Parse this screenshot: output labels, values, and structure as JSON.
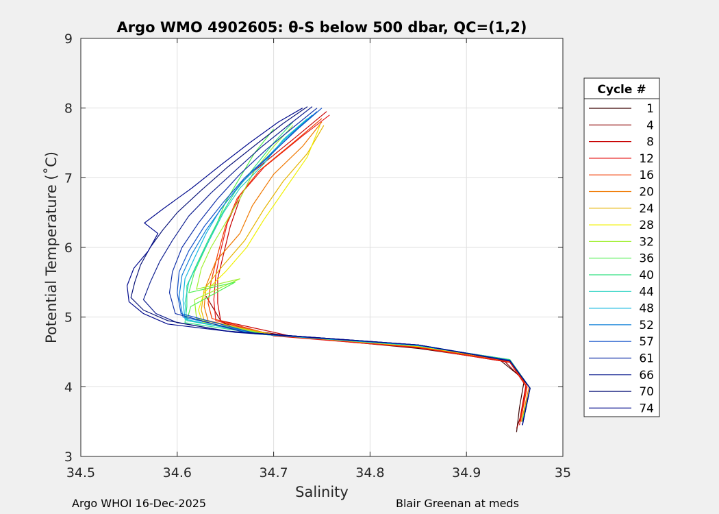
{
  "chart_data": {
    "type": "line",
    "title": "Argo WMO 4902605: θ-S below 500 dbar,  QC=(1,2)",
    "xlabel": "Salinity",
    "ylabel": "Potential Temperature (˚C)",
    "xlim": [
      34.5,
      35
    ],
    "ylim": [
      3,
      9
    ],
    "xticks": [
      "34.5",
      "34.6",
      "34.7",
      "34.8",
      "34.9",
      "35"
    ],
    "yticks": [
      "3",
      "4",
      "5",
      "6",
      "7",
      "8",
      "9"
    ],
    "grid": true,
    "legend": {
      "title": "Cycle #",
      "placement": "outside-right",
      "entries": [
        "1",
        "4",
        "8",
        "12",
        "16",
        "20",
        "24",
        "28",
        "32",
        "36",
        "40",
        "44",
        "48",
        "52",
        "57",
        "61",
        "66",
        "70",
        "74"
      ],
      "colors": [
        "#3b0000",
        "#8b0000",
        "#c80000",
        "#e61414",
        "#f23a00",
        "#f07800",
        "#e6b400",
        "#f0f000",
        "#a0f030",
        "#50f050",
        "#30e080",
        "#20d0c0",
        "#10b8e0",
        "#1080d8",
        "#1050c8",
        "#1030a8",
        "#102090",
        "#0a1478",
        "#000a8c"
      ]
    },
    "series": [
      {
        "name": "1",
        "points": [
          [
            34.645,
            4.95
          ],
          [
            34.655,
            4.85
          ],
          [
            34.72,
            4.72
          ],
          [
            34.85,
            4.55
          ],
          [
            34.935,
            4.38
          ],
          [
            34.96,
            4.1
          ],
          [
            34.955,
            3.7
          ],
          [
            34.952,
            3.35
          ]
        ]
      },
      {
        "name": "4",
        "points": [
          [
            34.63,
            5.3
          ],
          [
            34.645,
            4.95
          ],
          [
            34.66,
            4.84
          ],
          [
            34.73,
            4.7
          ],
          [
            34.85,
            4.56
          ],
          [
            34.94,
            4.36
          ],
          [
            34.962,
            4.05
          ],
          [
            34.958,
            3.65
          ],
          [
            34.952,
            3.4
          ]
        ]
      },
      {
        "name": "8",
        "points": [
          [
            34.755,
            7.95
          ],
          [
            34.72,
            7.55
          ],
          [
            34.68,
            7.1
          ],
          [
            34.665,
            6.7
          ],
          [
            34.655,
            6.3
          ],
          [
            34.648,
            5.9
          ],
          [
            34.642,
            5.55
          ],
          [
            34.642,
            5.2
          ],
          [
            34.645,
            4.95
          ],
          [
            34.72,
            4.72
          ],
          [
            34.86,
            4.55
          ],
          [
            34.945,
            4.35
          ],
          [
            34.962,
            4.05
          ],
          [
            34.955,
            3.5
          ]
        ]
      },
      {
        "name": "12",
        "points": [
          [
            34.758,
            7.9
          ],
          [
            34.73,
            7.6
          ],
          [
            34.69,
            7.15
          ],
          [
            34.665,
            6.75
          ],
          [
            34.652,
            6.35
          ],
          [
            34.645,
            5.95
          ],
          [
            34.64,
            5.6
          ],
          [
            34.638,
            5.25
          ],
          [
            34.64,
            4.95
          ],
          [
            34.7,
            4.73
          ],
          [
            34.85,
            4.56
          ],
          [
            34.945,
            4.35
          ],
          [
            34.962,
            4.0
          ],
          [
            34.955,
            3.45
          ]
        ]
      },
      {
        "name": "16",
        "points": [
          [
            34.75,
            7.85
          ],
          [
            34.72,
            7.5
          ],
          [
            34.685,
            7.1
          ],
          [
            34.662,
            6.7
          ],
          [
            34.65,
            6.3
          ],
          [
            34.642,
            5.9
          ],
          [
            34.635,
            5.5
          ],
          [
            34.632,
            5.2
          ],
          [
            34.636,
            4.98
          ],
          [
            34.7,
            4.74
          ],
          [
            34.85,
            4.57
          ],
          [
            34.945,
            4.36
          ],
          [
            34.963,
            4.0
          ],
          [
            34.956,
            3.5
          ]
        ]
      },
      {
        "name": "20",
        "points": [
          [
            34.75,
            7.8
          ],
          [
            34.73,
            7.45
          ],
          [
            34.7,
            7.05
          ],
          [
            34.678,
            6.6
          ],
          [
            34.665,
            6.2
          ],
          [
            34.64,
            5.8
          ],
          [
            34.63,
            5.45
          ],
          [
            34.628,
            5.15
          ],
          [
            34.632,
            4.95
          ],
          [
            34.7,
            4.74
          ],
          [
            34.85,
            4.58
          ],
          [
            34.945,
            4.37
          ],
          [
            34.965,
            4.0
          ],
          [
            34.957,
            3.5
          ]
        ]
      },
      {
        "name": "24",
        "points": [
          [
            34.752,
            7.75
          ],
          [
            34.735,
            7.35
          ],
          [
            34.71,
            6.95
          ],
          [
            34.69,
            6.55
          ],
          [
            34.67,
            6.1
          ],
          [
            34.645,
            5.7
          ],
          [
            34.628,
            5.4
          ],
          [
            34.625,
            5.1
          ],
          [
            34.628,
            4.95
          ],
          [
            34.7,
            4.75
          ],
          [
            34.85,
            4.58
          ],
          [
            34.945,
            4.38
          ],
          [
            34.966,
            3.98
          ],
          [
            34.958,
            3.55
          ]
        ]
      },
      {
        "name": "28",
        "points": [
          [
            34.748,
            7.75
          ],
          [
            34.735,
            7.3
          ],
          [
            34.715,
            6.9
          ],
          [
            34.69,
            6.4
          ],
          [
            34.672,
            6.0
          ],
          [
            34.65,
            5.65
          ],
          [
            34.628,
            5.35
          ],
          [
            34.622,
            5.1
          ],
          [
            34.626,
            4.93
          ],
          [
            34.7,
            4.74
          ],
          [
            34.85,
            4.58
          ],
          [
            34.945,
            4.38
          ],
          [
            34.966,
            3.98
          ],
          [
            34.958,
            3.5
          ]
        ]
      },
      {
        "name": "32",
        "points": [
          [
            34.72,
            7.75
          ],
          [
            34.7,
            7.45
          ],
          [
            34.68,
            7.1
          ],
          [
            34.665,
            6.7
          ],
          [
            34.65,
            6.35
          ],
          [
            34.635,
            6.0
          ],
          [
            34.625,
            5.7
          ],
          [
            34.62,
            5.4
          ],
          [
            34.665,
            5.55
          ],
          [
            34.618,
            5.25
          ],
          [
            34.62,
            4.98
          ],
          [
            34.69,
            4.76
          ],
          [
            34.85,
            4.59
          ],
          [
            34.945,
            4.39
          ],
          [
            34.966,
            3.98
          ],
          [
            34.958,
            3.5
          ]
        ]
      },
      {
        "name": "36",
        "points": [
          [
            34.7,
            7.7
          ],
          [
            34.68,
            7.35
          ],
          [
            34.665,
            7.0
          ],
          [
            34.65,
            6.65
          ],
          [
            34.64,
            6.3
          ],
          [
            34.628,
            5.95
          ],
          [
            34.618,
            5.65
          ],
          [
            34.612,
            5.35
          ],
          [
            34.66,
            5.5
          ],
          [
            34.614,
            5.15
          ],
          [
            34.61,
            4.95
          ],
          [
            34.69,
            4.76
          ],
          [
            34.85,
            4.59
          ],
          [
            34.945,
            4.39
          ],
          [
            34.966,
            3.98
          ],
          [
            34.958,
            3.5
          ]
        ]
      },
      {
        "name": "40",
        "points": [
          [
            34.72,
            7.8
          ],
          [
            34.7,
            7.5
          ],
          [
            34.68,
            7.15
          ],
          [
            34.66,
            6.8
          ],
          [
            34.645,
            6.45
          ],
          [
            34.632,
            6.1
          ],
          [
            34.62,
            5.75
          ],
          [
            34.61,
            5.45
          ],
          [
            34.61,
            5.15
          ],
          [
            34.608,
            4.92
          ],
          [
            34.69,
            4.75
          ],
          [
            34.85,
            4.59
          ],
          [
            34.945,
            4.39
          ],
          [
            34.966,
            3.98
          ],
          [
            34.958,
            3.5
          ]
        ]
      },
      {
        "name": "44",
        "points": [
          [
            34.735,
            7.85
          ],
          [
            34.71,
            7.55
          ],
          [
            34.69,
            7.2
          ],
          [
            34.665,
            6.85
          ],
          [
            34.648,
            6.5
          ],
          [
            34.635,
            6.15
          ],
          [
            34.622,
            5.8
          ],
          [
            34.612,
            5.5
          ],
          [
            34.608,
            5.2
          ],
          [
            34.61,
            4.95
          ],
          [
            34.69,
            4.75
          ],
          [
            34.85,
            4.59
          ],
          [
            34.945,
            4.38
          ],
          [
            34.966,
            3.98
          ],
          [
            34.958,
            3.45
          ]
        ]
      },
      {
        "name": "48",
        "points": [
          [
            34.74,
            7.9
          ],
          [
            34.715,
            7.6
          ],
          [
            34.69,
            7.25
          ],
          [
            34.665,
            6.9
          ],
          [
            34.645,
            6.55
          ],
          [
            34.63,
            6.2
          ],
          [
            34.618,
            5.85
          ],
          [
            34.608,
            5.55
          ],
          [
            34.606,
            5.25
          ],
          [
            34.608,
            4.97
          ],
          [
            34.68,
            4.76
          ],
          [
            34.85,
            4.59
          ],
          [
            34.945,
            4.38
          ],
          [
            34.966,
            3.98
          ],
          [
            34.958,
            3.45
          ]
        ]
      },
      {
        "name": "52",
        "points": [
          [
            34.745,
            7.95
          ],
          [
            34.72,
            7.65
          ],
          [
            34.695,
            7.3
          ],
          [
            34.668,
            6.95
          ],
          [
            34.648,
            6.6
          ],
          [
            34.63,
            6.25
          ],
          [
            34.615,
            5.9
          ],
          [
            34.605,
            5.6
          ],
          [
            34.602,
            5.3
          ],
          [
            34.606,
            5.0
          ],
          [
            34.68,
            4.77
          ],
          [
            34.85,
            4.6
          ],
          [
            34.945,
            4.38
          ],
          [
            34.966,
            3.98
          ],
          [
            34.958,
            3.45
          ]
        ]
      },
      {
        "name": "57",
        "points": [
          [
            34.75,
            8.0
          ],
          [
            34.725,
            7.7
          ],
          [
            34.698,
            7.35
          ],
          [
            34.67,
            7.0
          ],
          [
            34.648,
            6.65
          ],
          [
            34.628,
            6.3
          ],
          [
            34.612,
            5.95
          ],
          [
            34.602,
            5.65
          ],
          [
            34.6,
            5.35
          ],
          [
            34.604,
            5.05
          ],
          [
            34.68,
            4.77
          ],
          [
            34.85,
            4.6
          ],
          [
            34.945,
            4.38
          ],
          [
            34.966,
            3.98
          ],
          [
            34.958,
            3.45
          ]
        ]
      },
      {
        "name": "61",
        "points": [
          [
            34.745,
            8.0
          ],
          [
            34.72,
            7.72
          ],
          [
            34.692,
            7.4
          ],
          [
            34.665,
            7.05
          ],
          [
            34.642,
            6.7
          ],
          [
            34.622,
            6.35
          ],
          [
            34.605,
            6.0
          ],
          [
            34.595,
            5.65
          ],
          [
            34.592,
            5.35
          ],
          [
            34.598,
            5.05
          ],
          [
            34.67,
            4.78
          ],
          [
            34.85,
            4.6
          ],
          [
            34.945,
            4.37
          ],
          [
            34.966,
            3.98
          ],
          [
            34.958,
            3.45
          ]
        ]
      },
      {
        "name": "66",
        "points": [
          [
            34.74,
            8.02
          ],
          [
            34.715,
            7.75
          ],
          [
            34.688,
            7.45
          ],
          [
            34.66,
            7.1
          ],
          [
            34.635,
            6.78
          ],
          [
            34.612,
            6.45
          ],
          [
            34.595,
            6.1
          ],
          [
            34.582,
            5.8
          ],
          [
            34.572,
            5.5
          ],
          [
            34.565,
            5.25
          ],
          [
            34.578,
            5.05
          ],
          [
            34.6,
            4.92
          ],
          [
            34.66,
            4.78
          ],
          [
            34.85,
            4.6
          ],
          [
            34.945,
            4.37
          ],
          [
            34.966,
            3.98
          ],
          [
            34.958,
            3.45
          ]
        ]
      },
      {
        "name": "70",
        "points": [
          [
            34.735,
            8.02
          ],
          [
            34.71,
            7.78
          ],
          [
            34.682,
            7.48
          ],
          [
            34.652,
            7.15
          ],
          [
            34.625,
            6.82
          ],
          [
            34.6,
            6.5
          ],
          [
            34.585,
            6.25
          ],
          [
            34.572,
            6.0
          ],
          [
            34.562,
            5.75
          ],
          [
            34.556,
            5.5
          ],
          [
            34.552,
            5.28
          ],
          [
            34.565,
            5.1
          ],
          [
            34.59,
            4.95
          ],
          [
            34.65,
            4.8
          ],
          [
            34.85,
            4.6
          ],
          [
            34.945,
            4.37
          ],
          [
            34.966,
            3.98
          ],
          [
            34.958,
            3.45
          ]
        ]
      },
      {
        "name": "74",
        "points": [
          [
            34.73,
            8.0
          ],
          [
            34.705,
            7.8
          ],
          [
            34.675,
            7.5
          ],
          [
            34.645,
            7.18
          ],
          [
            34.615,
            6.85
          ],
          [
            34.585,
            6.55
          ],
          [
            34.566,
            6.35
          ],
          [
            34.58,
            6.2
          ],
          [
            34.57,
            5.95
          ],
          [
            34.555,
            5.7
          ],
          [
            34.548,
            5.45
          ],
          [
            34.55,
            5.22
          ],
          [
            34.565,
            5.05
          ],
          [
            34.59,
            4.9
          ],
          [
            34.65,
            4.8
          ],
          [
            34.85,
            4.6
          ],
          [
            34.945,
            4.37
          ],
          [
            34.966,
            3.98
          ],
          [
            34.958,
            3.45
          ]
        ]
      }
    ]
  },
  "footer": {
    "left": "Argo WHOI 16-Dec-2025",
    "right": "Blair Greenan at meds"
  }
}
